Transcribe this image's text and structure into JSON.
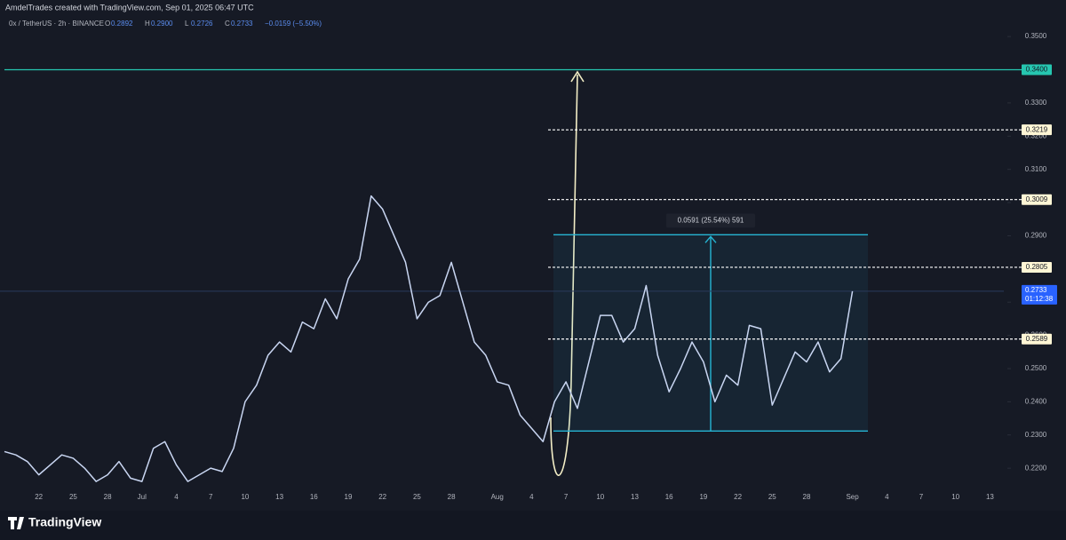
{
  "chart_data": {
    "type": "line",
    "header": "AmdelTrades created with TradingView.com, Sep 01, 2025 06:47 UTC",
    "symbol": "0x / TetherUS · 2h · BINANCE",
    "ohlc": [
      {
        "label": "O",
        "value": "0.2892"
      },
      {
        "label": "H",
        "value": "0.2900"
      },
      {
        "label": "L",
        "value": "0.2726"
      },
      {
        "label": "C",
        "value": "0.2733"
      }
    ],
    "change": "−0.0159 (−5.50%)",
    "brand": "TradingView",
    "categories": [
      null,
      null,
      null,
      "22",
      null,
      null,
      "25",
      null,
      null,
      "28",
      null,
      null,
      "Jul",
      null,
      null,
      "4",
      null,
      null,
      "7",
      null,
      null,
      "10",
      null,
      null,
      "13",
      null,
      null,
      "16",
      null,
      null,
      "19",
      null,
      null,
      "22",
      null,
      null,
      "25",
      null,
      null,
      "28",
      null,
      null,
      null,
      "Aug",
      null,
      null,
      "4",
      null,
      null,
      "7",
      null,
      null,
      "10",
      null,
      null,
      "13",
      null,
      null,
      "16",
      null,
      null,
      "19",
      null,
      null,
      "22",
      null,
      null,
      "25",
      null,
      null,
      "28",
      null,
      null,
      null,
      "Sep",
      null,
      null,
      "4",
      null,
      null,
      "7",
      null,
      null,
      "10",
      null,
      null,
      "13",
      null
    ],
    "series": [
      {
        "name": "0x / TetherUS",
        "color": "#c9d6f2",
        "values": [
          0.225,
          0.224,
          0.222,
          0.218,
          0.221,
          0.224,
          0.223,
          0.22,
          0.216,
          0.218,
          0.222,
          0.217,
          0.216,
          0.226,
          0.228,
          0.221,
          0.216,
          0.218,
          0.22,
          0.219,
          0.226,
          0.24,
          0.245,
          0.254,
          0.258,
          0.255,
          0.264,
          0.262,
          0.271,
          0.265,
          0.277,
          0.283,
          0.302,
          0.298,
          0.29,
          0.282,
          0.265,
          0.27,
          0.272,
          0.282,
          0.27,
          0.258,
          0.254,
          0.246,
          0.245,
          0.236,
          0.232,
          0.228,
          0.24,
          0.246,
          0.238,
          0.252,
          0.266,
          0.266,
          0.258,
          0.262,
          0.275,
          0.254,
          0.243,
          0.25,
          0.258,
          0.252,
          0.24,
          0.248,
          0.245,
          0.263,
          0.262,
          0.239,
          0.247,
          0.255,
          0.252,
          0.258,
          0.249,
          0.253,
          0.2733,
          null,
          null,
          null,
          null,
          null,
          null,
          null,
          null,
          null,
          null,
          null,
          null,
          null
        ]
      }
    ],
    "ylim": [
      0.2072,
      0.361
    ],
    "yticks": [
      {
        "value": 0.22,
        "label": "0.2200"
      },
      {
        "value": 0.23,
        "label": "0.2300"
      },
      {
        "value": 0.24,
        "label": "0.2400"
      },
      {
        "value": 0.25,
        "label": "0.2500"
      },
      {
        "value": 0.26,
        "label": "0.2600"
      },
      {
        "value": 0.27,
        "label": "0.2700"
      },
      {
        "value": 0.28,
        "label": "0.2800"
      },
      {
        "value": 0.29,
        "label": "0.2900"
      },
      {
        "value": 0.3,
        "label": "0.3000"
      },
      {
        "value": 0.31,
        "label": "0.3100"
      },
      {
        "value": 0.32,
        "label": "0.3200"
      },
      {
        "value": 0.33,
        "label": "0.3300"
      },
      {
        "value": 0.34,
        "label": "0.3400"
      },
      {
        "value": 0.35,
        "label": "0.3500"
      }
    ],
    "levels": [
      {
        "value": 0.34,
        "label": "0.3400",
        "color": "#26c6b0",
        "style": "solid"
      },
      {
        "value": 0.3219,
        "label": "0.3219",
        "color": "#ffffff",
        "style": "dashed"
      },
      {
        "value": 0.3009,
        "label": "0.3009",
        "color": "#ffffff",
        "style": "dashed"
      },
      {
        "value": 0.2805,
        "label": "0.2805",
        "color": "#ffffff",
        "style": "dashed"
      },
      {
        "value": 0.2589,
        "label": "0.2589",
        "color": "#ffffff",
        "style": "dashed"
      }
    ],
    "last_price": {
      "value": 0.2733,
      "label": "0.2733",
      "countdown": "01:12:38",
      "color": "#2962ff"
    },
    "measure": {
      "low": 0.2312,
      "high": 0.2903,
      "label": "0.0591 (25.54%) 591",
      "color": "#26b5d4"
    }
  }
}
